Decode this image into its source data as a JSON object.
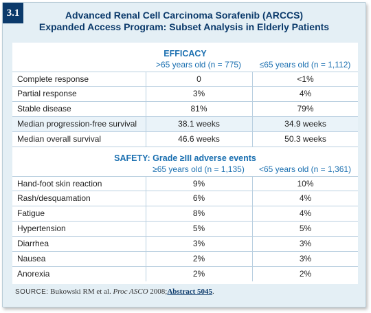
{
  "figure_label": "3.1",
  "title_line1": "Advanced Renal Cell Carcinoma Sorafenib (ARCCS)",
  "title_line2": "Expanded Access Program: Subset Analysis in Elderly Patients",
  "efficacy": {
    "heading": "EFFICACY",
    "col1": ">65 years old (n = 775)",
    "col2": "≤65 years old (n = 1,112)",
    "rows": [
      {
        "label": "Complete response",
        "v1": "0",
        "v2": "<1%"
      },
      {
        "label": "Partial response",
        "v1": "3%",
        "v2": "4%"
      },
      {
        "label": "Stable disease",
        "v1": "81%",
        "v2": "79%"
      },
      {
        "label": "Median progression-free survival",
        "v1": "38.1 weeks",
        "v2": "34.9 weeks"
      },
      {
        "label": "Median overall survival",
        "v1": "46.6 weeks",
        "v2": "50.3 weeks"
      }
    ]
  },
  "safety": {
    "heading": "SAFETY:  Grade ≥III adverse events",
    "col1": "≥65 years old (n = 1,135)",
    "col2": "<65 years old (n = 1,361)",
    "rows": [
      {
        "label": "Hand-foot skin reaction",
        "v1": "9%",
        "v2": "10%"
      },
      {
        "label": "Rash/desquamation",
        "v1": "6%",
        "v2": "4%"
      },
      {
        "label": "Fatigue",
        "v1": "8%",
        "v2": "4%"
      },
      {
        "label": "Hypertension",
        "v1": "5%",
        "v2": "5%"
      },
      {
        "label": "Diarrhea",
        "v1": "3%",
        "v2": "3%"
      },
      {
        "label": "Nausea",
        "v1": "2%",
        "v2": "3%"
      },
      {
        "label": "Anorexia",
        "v1": "2%",
        "v2": "2%"
      }
    ]
  },
  "source": {
    "label": "SOURCE:",
    "text": " Bukowski RM et al. ",
    "journal": "Proc ASCO",
    "year": " 2008;",
    "abstract": "Abstract 5045",
    "end": "."
  },
  "colors": {
    "tag_bg": "#0b3a6b",
    "title": "#0b3a6b",
    "section": "#1a6fb0",
    "card_bg": "#e4eff5",
    "row_shade": "#eaf3f9"
  }
}
